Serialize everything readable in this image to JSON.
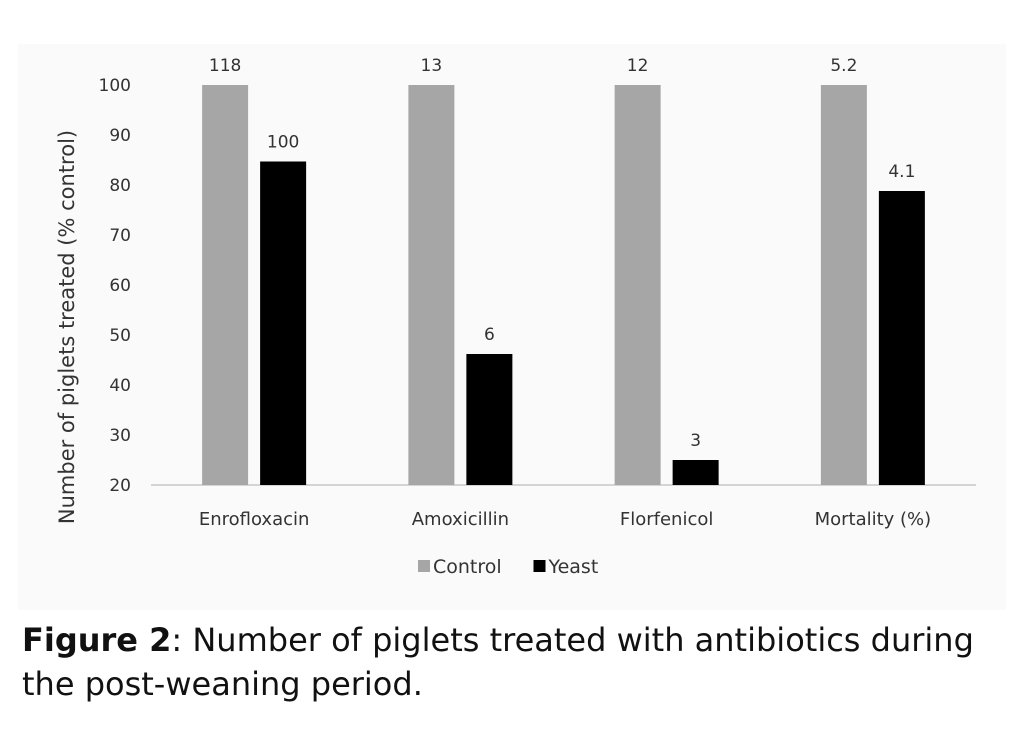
{
  "chart_data": {
    "type": "bar",
    "ylabel": "Number of piglets treated (% control)",
    "ylim": [
      20,
      100
    ],
    "yticks": [
      20,
      30,
      40,
      50,
      60,
      70,
      80,
      90,
      100
    ],
    "categories": [
      "Enrofloxacin",
      "Amoxicillin",
      "Florfenicol",
      "Mortality (%)"
    ],
    "series": [
      {
        "name": "Control",
        "color": "#a6a6a6",
        "values": [
          100,
          100,
          100,
          100
        ],
        "labels": [
          "118",
          "13",
          "12",
          "5.2"
        ]
      },
      {
        "name": "Yeast",
        "color": "#000000",
        "values": [
          84.7,
          46.2,
          25,
          78.8
        ],
        "labels": [
          "100",
          "6",
          "3",
          "4.1"
        ]
      }
    ],
    "legend_position": "bottom",
    "grid": false
  },
  "caption": {
    "label": "Figure 2",
    "text": ": Number of piglets treated with antibiotics during the post-weaning period."
  }
}
